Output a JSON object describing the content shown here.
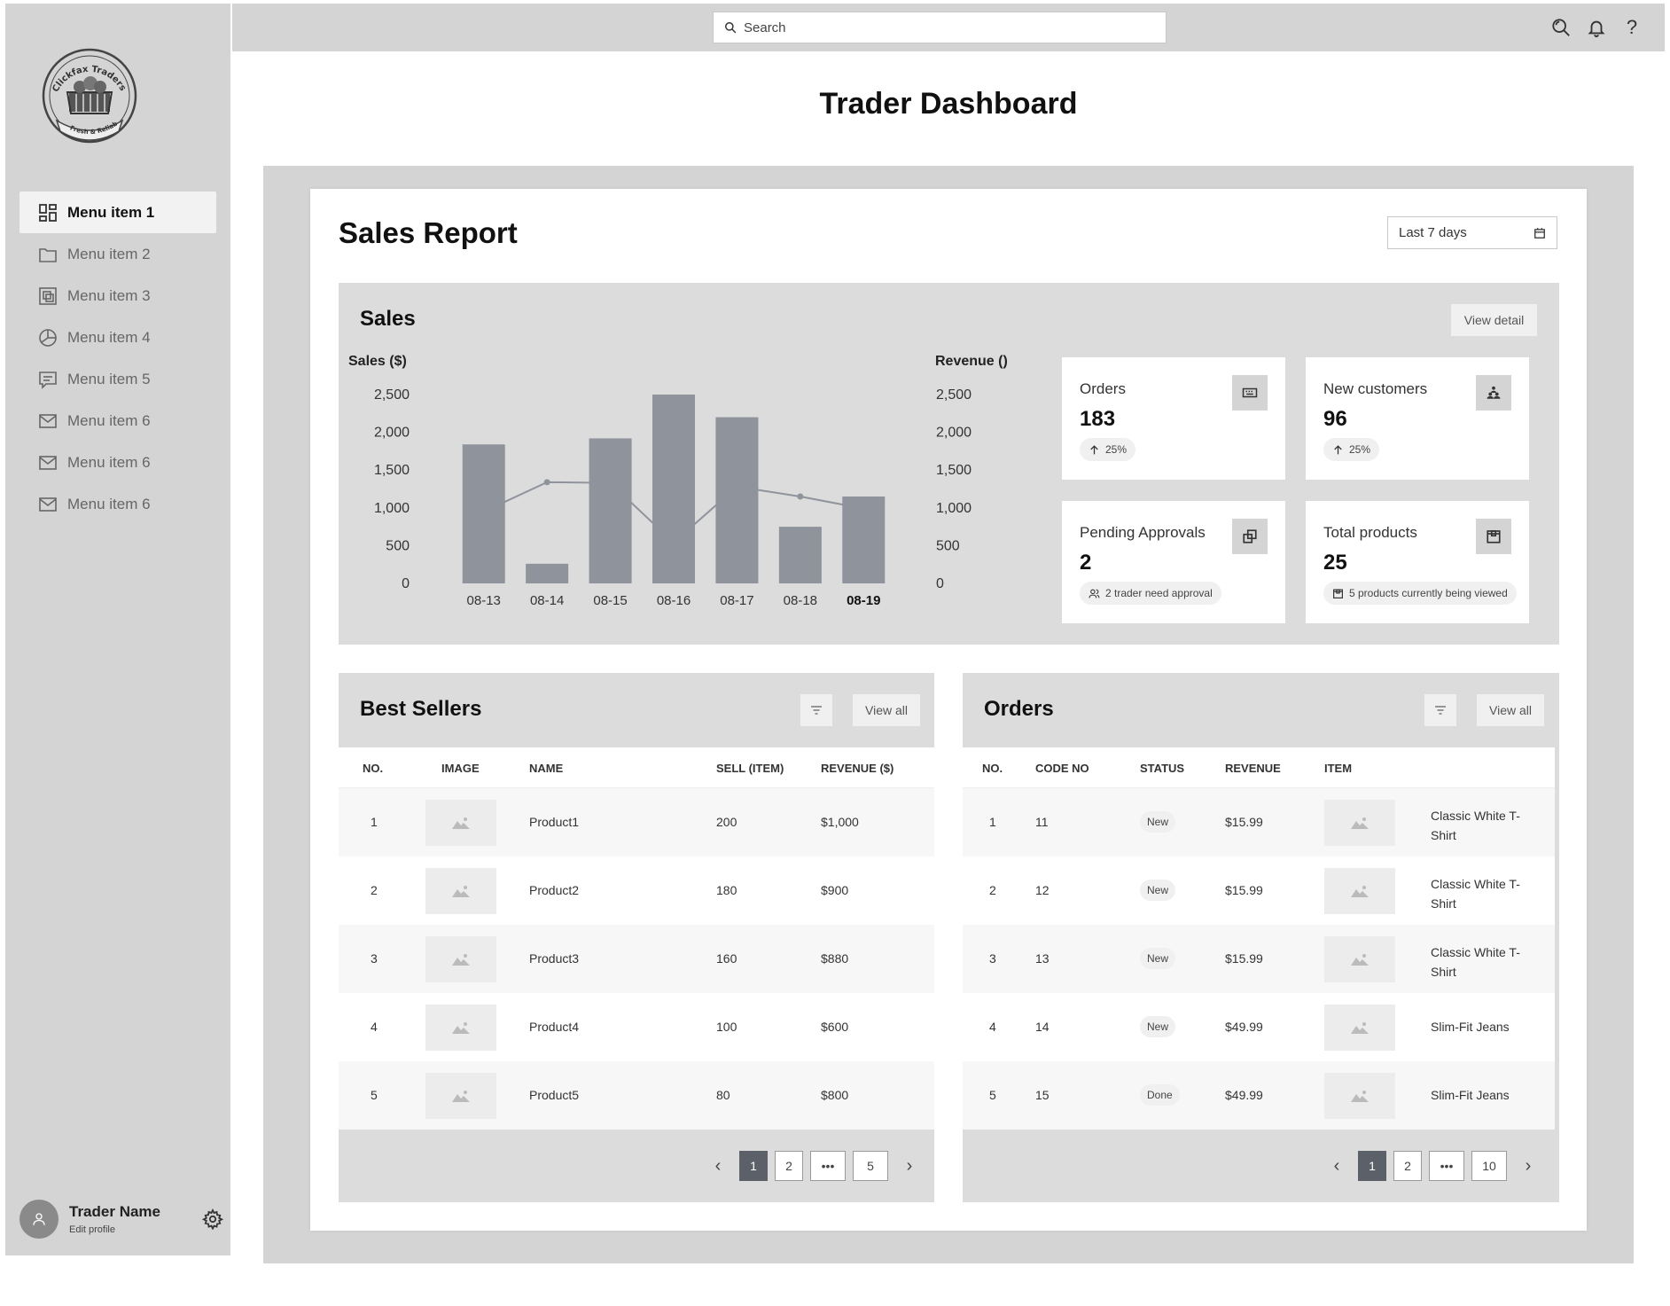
{
  "logo": {
    "top_text": "Clickfax Traders",
    "bottom_text": "Fresh & Reliable"
  },
  "sidebar": {
    "items": [
      {
        "label": "Menu item 1",
        "icon": "dashboard-icon",
        "active": true
      },
      {
        "label": "Menu item 2",
        "icon": "folder-icon",
        "active": false
      },
      {
        "label": "Menu item 3",
        "icon": "layers-icon",
        "active": false
      },
      {
        "label": "Menu item 4",
        "icon": "pie-chart-icon",
        "active": false
      },
      {
        "label": "Menu item 5",
        "icon": "message-icon",
        "active": false
      },
      {
        "label": "Menu item 6",
        "icon": "mail-icon",
        "active": false
      },
      {
        "label": "Menu item 6",
        "icon": "mail-icon",
        "active": false
      },
      {
        "label": "Menu item 6",
        "icon": "mail-icon",
        "active": false
      }
    ],
    "profile": {
      "name": "Trader Name",
      "edit_label": "Edit profile"
    }
  },
  "topbar": {
    "search_placeholder": "Search",
    "help_glyph": "?"
  },
  "page_title": "Trader Dashboard",
  "report": {
    "title": "Sales Report",
    "date_range": "Last 7 days",
    "sales_title": "Sales",
    "view_detail": "View detail"
  },
  "chart_data": {
    "type": "bar",
    "categories": [
      "08-13",
      "08-14",
      "08-15",
      "08-16",
      "08-17",
      "08-18",
      "08-19"
    ],
    "highlight_category": "08-19",
    "series": [
      {
        "name": "Sales ($)",
        "type": "bar",
        "values": [
          1840,
          260,
          1920,
          2500,
          2200,
          750,
          1150
        ]
      },
      {
        "name": "Revenue ()",
        "type": "line",
        "values": [
          950,
          1340,
          1330,
          540,
          1280,
          1150,
          990
        ]
      }
    ],
    "ylabel": "Sales ($)",
    "y2label": "Revenue ()",
    "ylim": [
      0,
      2500
    ],
    "y2lim": [
      0,
      2500
    ],
    "yticks": [
      "2,500",
      "2,000",
      "1,500",
      "1,000",
      "500",
      "0"
    ],
    "bar_color": "#8e939c",
    "line_color": "#8e939c"
  },
  "stats": [
    {
      "label": "Orders",
      "value": "183",
      "badge": "25%",
      "icon": "keyboard-icon",
      "badge_icon": "arrow-up-icon"
    },
    {
      "label": "New customers",
      "value": "96",
      "badge": "25%",
      "icon": "people-pyramid-icon",
      "badge_icon": "arrow-up-icon"
    },
    {
      "label": "Pending Approvals",
      "value": "2",
      "badge": "2 trader need approval",
      "icon": "copy-icon",
      "badge_icon": "users-icon"
    },
    {
      "label": "Total products",
      "value": "25",
      "badge": "5 products currently being viewed",
      "icon": "box-icon",
      "badge_icon": "box-icon"
    }
  ],
  "best_sellers": {
    "title": "Best Sellers",
    "view_all": "View all",
    "columns": [
      "NO.",
      "IMAGE",
      "NAME",
      "SELL (ITEM)",
      "REVENUE ($)"
    ],
    "rows": [
      {
        "no": "1",
        "name": "Product1",
        "sell": "200",
        "revenue": "$1,000"
      },
      {
        "no": "2",
        "name": "Product2",
        "sell": "180",
        "revenue": "$900"
      },
      {
        "no": "3",
        "name": "Product3",
        "sell": "160",
        "revenue": "$880"
      },
      {
        "no": "4",
        "name": "Product4",
        "sell": "100",
        "revenue": "$600"
      },
      {
        "no": "5",
        "name": "Product5",
        "sell": "80",
        "revenue": "$800"
      }
    ],
    "pages": [
      "1",
      "2",
      "•••",
      "5"
    ]
  },
  "orders": {
    "title": "Orders",
    "view_all": "View all",
    "columns": [
      "NO.",
      "CODE NO",
      "STATUS",
      "REVENUE",
      "ITEM"
    ],
    "rows": [
      {
        "no": "1",
        "code": "11",
        "status": "New",
        "revenue": "$15.99",
        "item_line1": "Classic White T-",
        "item_line2": "Shirt"
      },
      {
        "no": "2",
        "code": "12",
        "status": "New",
        "revenue": "$15.99",
        "item_line1": "Classic White T-",
        "item_line2": "Shirt"
      },
      {
        "no": "3",
        "code": "13",
        "status": "New",
        "revenue": "$15.99",
        "item_line1": "Classic White T-",
        "item_line2": "Shirt"
      },
      {
        "no": "4",
        "code": "14",
        "status": "New",
        "revenue": "$49.99",
        "item_line1": "Slim-Fit Jeans",
        "item_line2": ""
      },
      {
        "no": "5",
        "code": "15",
        "status": "Done",
        "revenue": "$49.99",
        "item_line1": "Slim-Fit Jeans",
        "item_line2": ""
      }
    ],
    "pages": [
      "1",
      "2",
      "•••",
      "10"
    ]
  }
}
